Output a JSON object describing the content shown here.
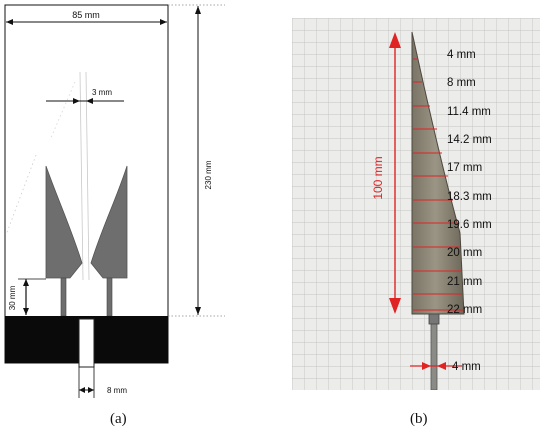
{
  "panel_a": {
    "width_label": "85 mm",
    "slot_label": "3 mm",
    "height_label": "230 mm",
    "feed_height_label": "30 mm",
    "connector_label": "8 mm",
    "caption": "(a)"
  },
  "panel_b": {
    "length_label": "100 mm",
    "width_labels": [
      "4 mm",
      "8 mm",
      "11.4 mm",
      "14.2 mm",
      "17 mm",
      "18.3 mm",
      "19.6 mm",
      "20 mm",
      "21 mm",
      "22 mm"
    ],
    "rod_label": "4 mm",
    "caption": "(b)"
  },
  "colors": {
    "blade_gray": "#6e6e6e",
    "ground_black": "#0a0a0a",
    "measure_red": "#e02424",
    "grid_line": "#b9b9b7"
  }
}
